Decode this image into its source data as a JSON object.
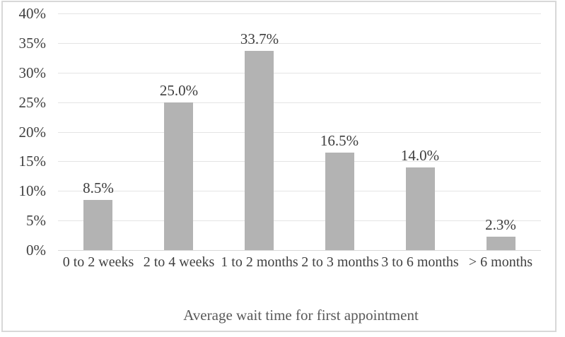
{
  "chart_data": {
    "type": "bar",
    "title": "",
    "categories": [
      "0 to 2 weeks",
      "2 to 4 weeks",
      "1 to 2 months",
      "2 to 3 months",
      "3 to 6 months",
      "> 6 months"
    ],
    "values": [
      8.5,
      25.0,
      33.7,
      16.5,
      14.0,
      2.3
    ],
    "data_labels": [
      "8.5%",
      "25.0%",
      "33.7%",
      "16.5%",
      "14.0%",
      "2.3%"
    ],
    "xlabel": "Average wait time for first appointment",
    "ylabel": "",
    "ylim": [
      0,
      40
    ],
    "ytick_step": 5,
    "ytick_labels": [
      "0%",
      "5%",
      "10%",
      "15%",
      "20%",
      "25%",
      "30%",
      "35%",
      "40%"
    ],
    "grid": true,
    "legend": false,
    "colors": {
      "bar": "#b3b3b3",
      "gridline": "#e4e4e4",
      "axis_line": "#d9d9d9",
      "tick_text": "#404040",
      "data_label_text": "#3d3d3d",
      "axis_title_text": "#595959",
      "frame_border": "#d8d8d8",
      "background": "#ffffff"
    }
  }
}
